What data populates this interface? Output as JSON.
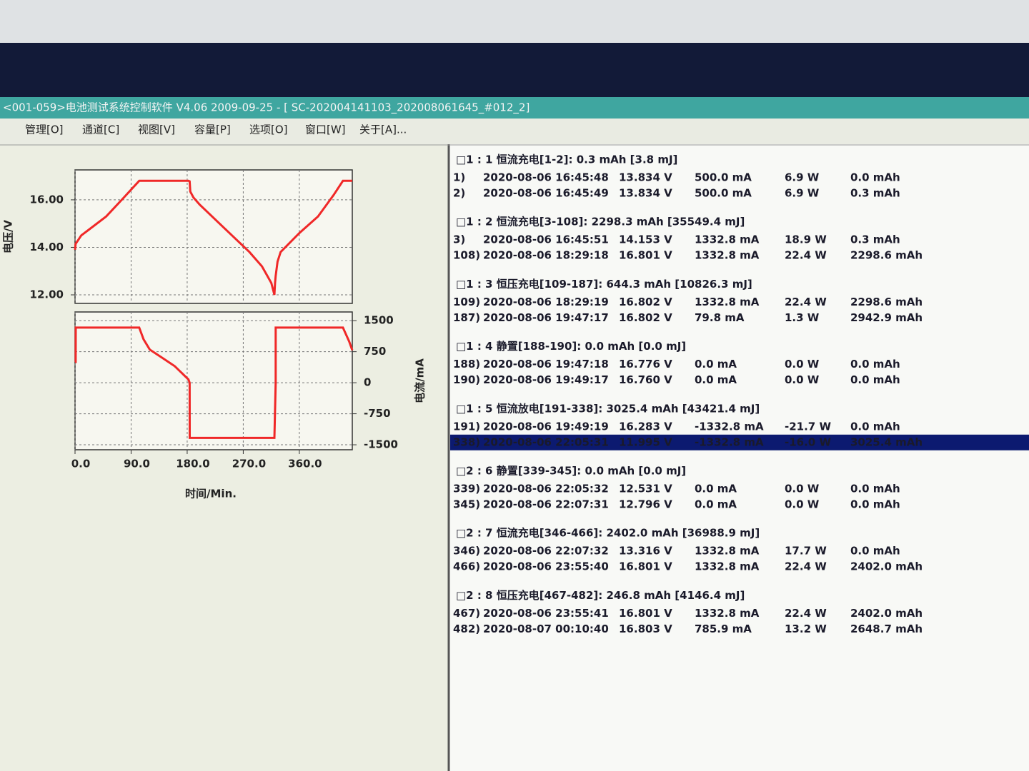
{
  "title_bar": "<001-059>电池测试系统控制软件 V4.06 2009-09-25 - [ SC-202004141103_202008061645_#012_2]",
  "menu": [
    "管理[O]",
    "通道[C]",
    "视图[V]",
    "容量[P]",
    "选项[O]",
    "窗口[W]",
    "关于[A]..."
  ],
  "chart_data": [
    {
      "type": "line",
      "ylabel": "电压/V",
      "yaxis": "left",
      "color": "#f02828",
      "grid": true,
      "x": [
        0,
        1,
        10,
        30,
        50,
        75,
        103,
        182,
        184,
        185,
        190,
        200,
        240,
        280,
        300,
        315,
        320,
        321,
        322,
        325,
        330,
        360,
        390,
        415,
        430,
        445
      ],
      "values": [
        13.9,
        14.15,
        14.5,
        14.9,
        15.3,
        16.0,
        16.8,
        16.8,
        16.78,
        16.35,
        16.1,
        15.8,
        14.8,
        13.8,
        13.2,
        12.5,
        12.0,
        12.5,
        12.8,
        13.4,
        13.8,
        14.6,
        15.3,
        16.2,
        16.8,
        16.8
      ],
      "xlim": [
        0,
        445
      ],
      "ylim": [
        11.64,
        17.26
      ],
      "xticks": [
        0,
        90,
        180,
        270,
        360
      ],
      "yticks": [
        {
          "value": 12,
          "label": "12.00"
        },
        {
          "value": 14,
          "label": "14.00"
        },
        {
          "value": 16,
          "label": "16.00"
        }
      ]
    },
    {
      "type": "line",
      "ylabel": "电流/mA",
      "xlabel": "时间/Min.",
      "yaxis": "right",
      "color": "#f02828",
      "grid": true,
      "x": [
        0,
        1,
        1.1,
        103,
        110,
        120,
        140,
        160,
        182,
        184,
        184.1,
        320,
        322,
        322.1,
        430,
        440,
        445
      ],
      "values": [
        500,
        500,
        1332.8,
        1332.8,
        1050,
        800,
        600,
        400,
        79.8,
        0,
        -1332.8,
        -1332.8,
        0,
        1332.8,
        1332.8,
        1000,
        785.9
      ],
      "xlim": [
        0,
        445
      ],
      "ylim": [
        -1620,
        1710
      ],
      "xticks": [
        {
          "value": 0,
          "label": "0.0"
        },
        {
          "value": 90,
          "label": "90.0"
        },
        {
          "value": 180,
          "label": "180.0"
        },
        {
          "value": 270,
          "label": "270.0"
        },
        {
          "value": 360,
          "label": "360.0"
        }
      ],
      "yticks": [
        1500,
        750,
        0,
        -750,
        -1500
      ]
    }
  ],
  "records": [
    {
      "header": "□1 : 1 恒流充电[1-2]: 0.3  mAh [3.8 mJ]",
      "rows": [
        {
          "cells": [
            "1)",
            "2020-08-06 16:45:48",
            "13.834 V",
            "500.0 mA",
            "6.9 W",
            "0.0 mAh"
          ]
        },
        {
          "cells": [
            "2)",
            "2020-08-06 16:45:49",
            "13.834 V",
            "500.0 mA",
            "6.9 W",
            "0.3 mAh"
          ]
        }
      ]
    },
    {
      "header": "□1 : 2 恒流充电[3-108]: 2298.3  mAh [35549.4 mJ]",
      "rows": [
        {
          "cells": [
            "3)",
            "2020-08-06 16:45:51",
            "14.153 V",
            "1332.8 mA",
            "18.9 W",
            "0.3 mAh"
          ]
        },
        {
          "cells": [
            "108)",
            "2020-08-06 18:29:18",
            "16.801 V",
            "1332.8 mA",
            "22.4 W",
            "2298.6 mAh"
          ]
        }
      ]
    },
    {
      "header": "□1 : 3 恒压充电[109-187]: 644.3  mAh [10826.3 mJ]",
      "rows": [
        {
          "cells": [
            "109)",
            "2020-08-06 18:29:19",
            "16.802 V",
            "1332.8 mA",
            "22.4 W",
            "2298.6 mAh"
          ]
        },
        {
          "cells": [
            "187)",
            "2020-08-06 19:47:17",
            "16.802 V",
            "79.8 mA",
            "1.3 W",
            "2942.9 mAh"
          ]
        }
      ]
    },
    {
      "header": "□1 : 4 静置[188-190]: 0.0  mAh [0.0 mJ]",
      "rows": [
        {
          "cells": [
            "188)",
            "2020-08-06 19:47:18",
            "16.776 V",
            "0.0 mA",
            "0.0 W",
            "0.0 mAh"
          ]
        },
        {
          "cells": [
            "190)",
            "2020-08-06 19:49:17",
            "16.760 V",
            "0.0 mA",
            "0.0 W",
            "0.0 mAh"
          ]
        }
      ]
    },
    {
      "header": "□1 : 5 恒流放电[191-338]: 3025.4  mAh [43421.4 mJ]",
      "rows": [
        {
          "cells": [
            "191)",
            "2020-08-06 19:49:19",
            "16.283 V",
            "-1332.8 mA",
            "-21.7 W",
            "0.0 mAh"
          ]
        },
        {
          "cells": [
            "338)",
            "2020-08-06 22:05:31",
            "11.995 V",
            "-1332.8 mA",
            "-16.0 W",
            "3025.4 mAh"
          ],
          "selected": true
        }
      ]
    },
    {
      "header": "□2 : 6 静置[339-345]: 0.0  mAh [0.0 mJ]",
      "rows": [
        {
          "cells": [
            "339)",
            "2020-08-06 22:05:32",
            "12.531 V",
            "0.0 mA",
            "0.0 W",
            "0.0 mAh"
          ]
        },
        {
          "cells": [
            "345)",
            "2020-08-06 22:07:31",
            "12.796 V",
            "0.0 mA",
            "0.0 W",
            "0.0 mAh"
          ]
        }
      ]
    },
    {
      "header": "□2 : 7 恒流充电[346-466]: 2402.0  mAh [36988.9 mJ]",
      "rows": [
        {
          "cells": [
            "346)",
            "2020-08-06 22:07:32",
            "13.316 V",
            "1332.8 mA",
            "17.7 W",
            "0.0 mAh"
          ]
        },
        {
          "cells": [
            "466)",
            "2020-08-06 23:55:40",
            "16.801 V",
            "1332.8 mA",
            "22.4 W",
            "2402.0 mAh"
          ]
        }
      ]
    },
    {
      "header": "□2 : 8 恒压充电[467-482]: 246.8  mAh [4146.4 mJ]",
      "rows": [
        {
          "cells": [
            "467)",
            "2020-08-06 23:55:41",
            "16.801 V",
            "1332.8 mA",
            "22.4 W",
            "2402.0 mAh"
          ]
        },
        {
          "cells": [
            "482)",
            "2020-08-07 00:10:40",
            "16.803 V",
            "785.9 mA",
            "13.2 W",
            "2648.7 mAh"
          ]
        }
      ]
    }
  ]
}
